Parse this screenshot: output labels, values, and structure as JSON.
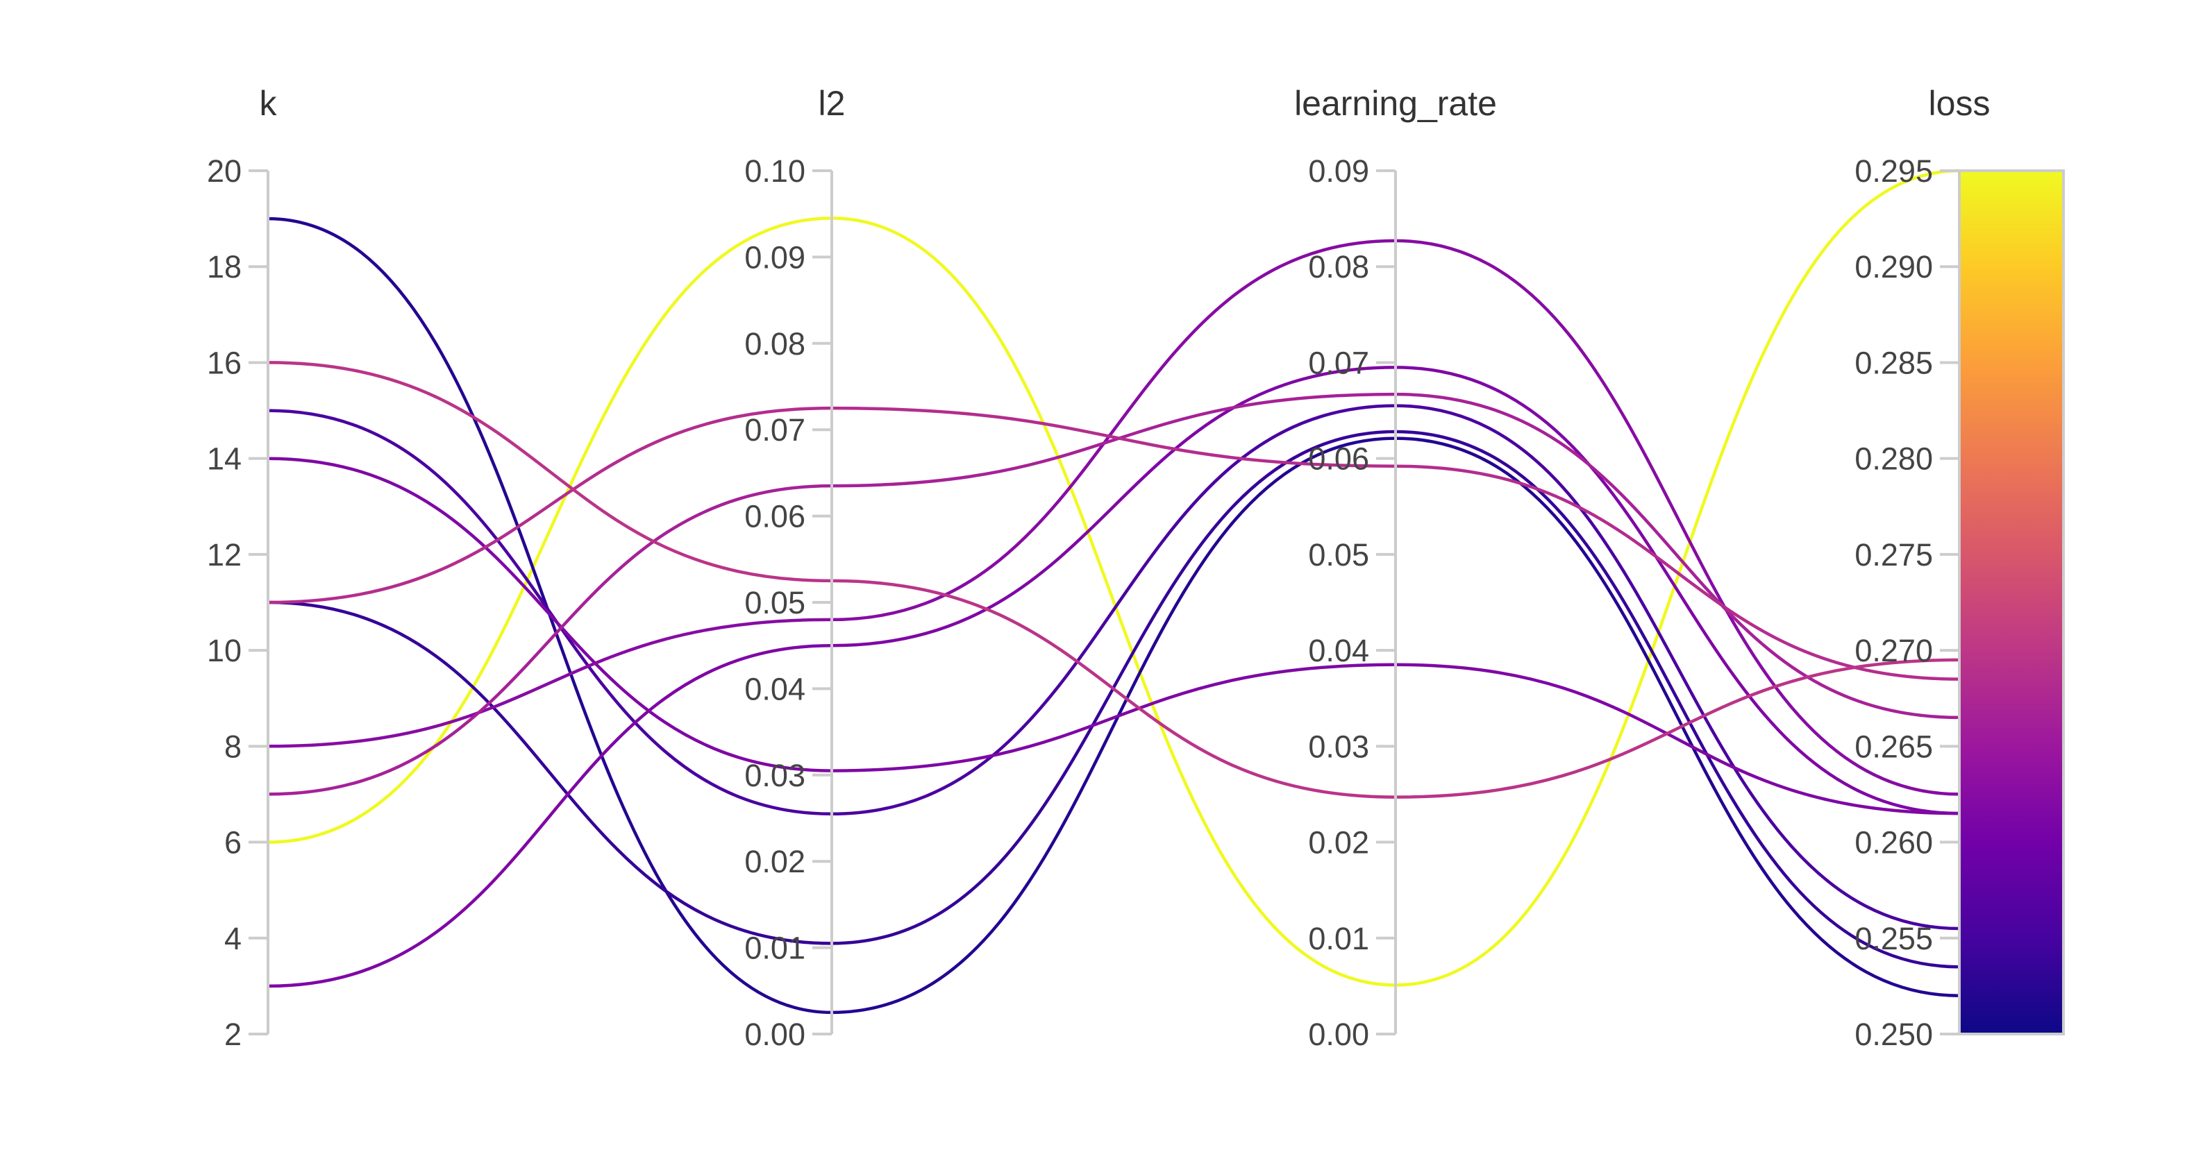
{
  "chart_data": {
    "type": "parallel_coordinates",
    "axes": [
      {
        "key": "k",
        "label": "k",
        "range": [
          2,
          20
        ],
        "ticks": [
          "2",
          "4",
          "6",
          "8",
          "10",
          "12",
          "14",
          "16",
          "18",
          "20"
        ]
      },
      {
        "key": "l2",
        "label": "l2",
        "range": [
          0,
          0.1
        ],
        "ticks": [
          "0.00",
          "0.01",
          "0.02",
          "0.03",
          "0.04",
          "0.05",
          "0.06",
          "0.07",
          "0.08",
          "0.09",
          "0.10"
        ]
      },
      {
        "key": "learning_rate",
        "label": "learning_rate",
        "range": [
          0,
          0.09
        ],
        "ticks": [
          "0.00",
          "0.01",
          "0.02",
          "0.03",
          "0.04",
          "0.05",
          "0.06",
          "0.07",
          "0.08",
          "0.09"
        ]
      },
      {
        "key": "loss",
        "label": "loss",
        "range": [
          0.25,
          0.295
        ],
        "ticks": [
          "0.250",
          "0.255",
          "0.260",
          "0.265",
          "0.270",
          "0.275",
          "0.280",
          "0.285",
          "0.290",
          "0.295"
        ]
      }
    ],
    "color_by": "loss",
    "colorscale": [
      "#0d0887",
      "#46039f",
      "#7201a8",
      "#9c179e",
      "#bd3786",
      "#d8576b",
      "#ed7953",
      "#fb9f3a",
      "#fdca26",
      "#f0f921"
    ],
    "colorbar": {
      "range": [
        0.25,
        0.295
      ],
      "position": "right"
    },
    "series": [
      {
        "k": 6,
        "l2": 0.0945,
        "learning_rate": 0.0051,
        "loss": 0.295
      },
      {
        "k": 19,
        "l2": 0.0025,
        "learning_rate": 0.0621,
        "loss": 0.252
      },
      {
        "k": 11,
        "l2": 0.0105,
        "learning_rate": 0.0628,
        "loss": 0.2535
      },
      {
        "k": 15,
        "l2": 0.0255,
        "learning_rate": 0.0655,
        "loss": 0.2555
      },
      {
        "k": 14,
        "l2": 0.0305,
        "learning_rate": 0.0385,
        "loss": 0.2615
      },
      {
        "k": 3,
        "l2": 0.045,
        "learning_rate": 0.0695,
        "loss": 0.2615
      },
      {
        "k": 8,
        "l2": 0.048,
        "learning_rate": 0.0827,
        "loss": 0.2625
      },
      {
        "k": 7,
        "l2": 0.0635,
        "learning_rate": 0.0667,
        "loss": 0.2665
      },
      {
        "k": 11,
        "l2": 0.0725,
        "learning_rate": 0.0592,
        "loss": 0.2685
      },
      {
        "k": 16,
        "l2": 0.0525,
        "learning_rate": 0.0247,
        "loss": 0.2695
      }
    ]
  }
}
